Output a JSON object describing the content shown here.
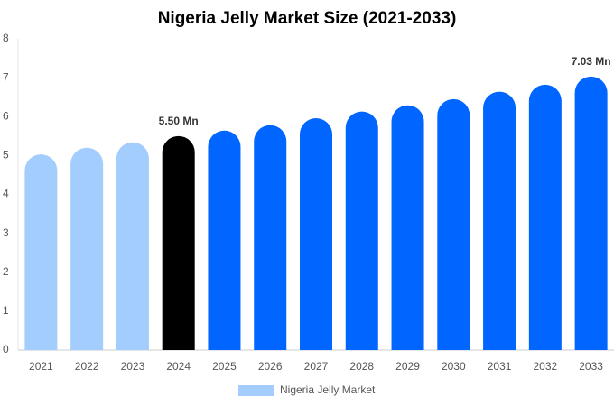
{
  "chart_data": {
    "type": "bar",
    "title": "Nigeria Jelly Market Size (2021-2033)",
    "categories": [
      "2021",
      "2022",
      "2023",
      "2024",
      "2025",
      "2026",
      "2027",
      "2028",
      "2029",
      "2030",
      "2031",
      "2032",
      "2033"
    ],
    "series": [
      {
        "name": "Nigeria Jelly Market",
        "color": "#a3cdfd",
        "colors": [
          "#a3cdfd",
          "#a3cdfd",
          "#a3cdfd",
          "#000000",
          "#0066ff",
          "#0066ff",
          "#0066ff",
          "#0066ff",
          "#0066ff",
          "#0066ff",
          "#0066ff",
          "#0066ff",
          "#0066ff"
        ],
        "values": [
          5.03,
          5.2,
          5.34,
          5.5,
          5.64,
          5.78,
          5.96,
          6.13,
          6.29,
          6.45,
          6.64,
          6.82,
          7.03
        ],
        "value_labels": [
          null,
          null,
          null,
          "5.50 Mn",
          null,
          null,
          null,
          null,
          null,
          null,
          null,
          null,
          "7.03 Mn"
        ]
      }
    ],
    "ylim": [
      0,
      8
    ],
    "yticks": [
      0,
      1,
      2,
      3,
      4,
      5,
      6,
      7,
      8
    ],
    "grid": false
  }
}
